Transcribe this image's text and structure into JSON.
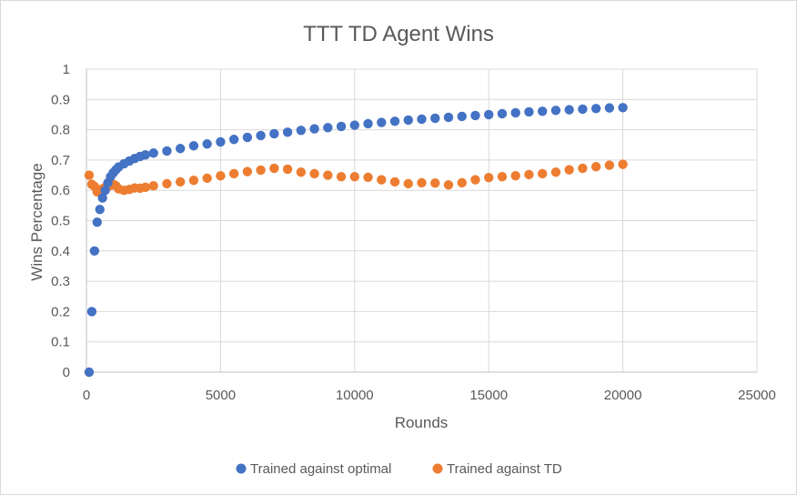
{
  "chart_data": {
    "type": "scatter",
    "title": "TTT TD Agent Wins",
    "xlabel": "Rounds",
    "ylabel": "Wins Percentage",
    "xlim": [
      0,
      25000
    ],
    "ylim": [
      0,
      1
    ],
    "x_ticks": [
      "0",
      "5000",
      "10000",
      "15000",
      "20000",
      "25000"
    ],
    "y_ticks": [
      "0",
      "0.1",
      "0.2",
      "0.3",
      "0.4",
      "0.5",
      "0.6",
      "0.7",
      "0.8",
      "0.9",
      "1"
    ],
    "grid": true,
    "legend_position": "bottom",
    "series": [
      {
        "name": "Trained against optimal",
        "color": "#4472c4",
        "points": [
          [
            100,
            0.0
          ],
          [
            200,
            0.2
          ],
          [
            300,
            0.4
          ],
          [
            400,
            0.495
          ],
          [
            500,
            0.537
          ],
          [
            600,
            0.575
          ],
          [
            700,
            0.6
          ],
          [
            800,
            0.625
          ],
          [
            900,
            0.645
          ],
          [
            1000,
            0.658
          ],
          [
            1100,
            0.668
          ],
          [
            1200,
            0.677
          ],
          [
            1400,
            0.688
          ],
          [
            1600,
            0.697
          ],
          [
            1800,
            0.705
          ],
          [
            2000,
            0.712
          ],
          [
            2200,
            0.717
          ],
          [
            2500,
            0.723
          ],
          [
            3000,
            0.73
          ],
          [
            3500,
            0.738
          ],
          [
            4000,
            0.747
          ],
          [
            4500,
            0.753
          ],
          [
            5000,
            0.76
          ],
          [
            5500,
            0.768
          ],
          [
            6000,
            0.775
          ],
          [
            6500,
            0.781
          ],
          [
            7000,
            0.787
          ],
          [
            7500,
            0.792
          ],
          [
            8000,
            0.798
          ],
          [
            8500,
            0.803
          ],
          [
            9000,
            0.807
          ],
          [
            9500,
            0.811
          ],
          [
            10000,
            0.815
          ],
          [
            10500,
            0.82
          ],
          [
            11000,
            0.824
          ],
          [
            11500,
            0.828
          ],
          [
            12000,
            0.832
          ],
          [
            12500,
            0.835
          ],
          [
            13000,
            0.838
          ],
          [
            13500,
            0.841
          ],
          [
            14000,
            0.844
          ],
          [
            14500,
            0.847
          ],
          [
            15000,
            0.85
          ],
          [
            15500,
            0.853
          ],
          [
            16000,
            0.856
          ],
          [
            16500,
            0.859
          ],
          [
            17000,
            0.861
          ],
          [
            17500,
            0.864
          ],
          [
            18000,
            0.866
          ],
          [
            18500,
            0.868
          ],
          [
            19000,
            0.87
          ],
          [
            19500,
            0.872
          ],
          [
            20000,
            0.873
          ]
        ]
      },
      {
        "name": "Trained against TD",
        "color": "#ed7d31",
        "points": [
          [
            100,
            0.65
          ],
          [
            200,
            0.62
          ],
          [
            300,
            0.613
          ],
          [
            400,
            0.595
          ],
          [
            500,
            0.6
          ],
          [
            600,
            0.605
          ],
          [
            700,
            0.61
          ],
          [
            800,
            0.613
          ],
          [
            900,
            0.617
          ],
          [
            1000,
            0.62
          ],
          [
            1100,
            0.615
          ],
          [
            1200,
            0.605
          ],
          [
            1400,
            0.6
          ],
          [
            1600,
            0.603
          ],
          [
            1800,
            0.608
          ],
          [
            2000,
            0.607
          ],
          [
            2200,
            0.61
          ],
          [
            2500,
            0.615
          ],
          [
            3000,
            0.622
          ],
          [
            3500,
            0.628
          ],
          [
            4000,
            0.633
          ],
          [
            4500,
            0.64
          ],
          [
            5000,
            0.648
          ],
          [
            5500,
            0.655
          ],
          [
            6000,
            0.662
          ],
          [
            6500,
            0.667
          ],
          [
            7000,
            0.673
          ],
          [
            7500,
            0.67
          ],
          [
            8000,
            0.66
          ],
          [
            8500,
            0.655
          ],
          [
            9000,
            0.65
          ],
          [
            9500,
            0.645
          ],
          [
            10000,
            0.645
          ],
          [
            10500,
            0.643
          ],
          [
            11000,
            0.635
          ],
          [
            11500,
            0.628
          ],
          [
            12000,
            0.622
          ],
          [
            12500,
            0.625
          ],
          [
            13000,
            0.624
          ],
          [
            13500,
            0.618
          ],
          [
            14000,
            0.625
          ],
          [
            14500,
            0.635
          ],
          [
            15000,
            0.642
          ],
          [
            15500,
            0.645
          ],
          [
            16000,
            0.648
          ],
          [
            16500,
            0.652
          ],
          [
            17000,
            0.655
          ],
          [
            17500,
            0.66
          ],
          [
            18000,
            0.668
          ],
          [
            18500,
            0.673
          ],
          [
            19000,
            0.678
          ],
          [
            19500,
            0.683
          ],
          [
            20000,
            0.686
          ]
        ]
      }
    ]
  }
}
